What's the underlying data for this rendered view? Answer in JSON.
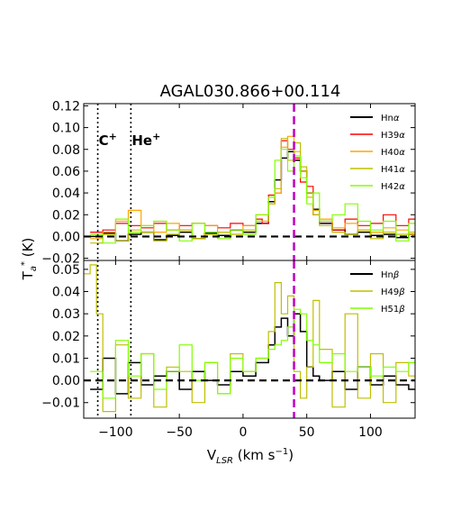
{
  "chart_data": {
    "type": "line",
    "title": "AGAL030.866+00.114",
    "xlabel": "V$_{LSR}$ (km s$^{-1}$)",
    "xlabel_display": {
      "main": "V",
      "sub": "LSR",
      "rest": " (km s",
      "sup": "−1",
      "end": ")"
    },
    "ylabel": "T$_a$$^*$ (K)",
    "ylabel_display": {
      "main": "T",
      "sub": "a",
      "sup": "*",
      "rest": " (K)"
    },
    "xlim": [
      -125,
      135
    ],
    "x_ticks": [
      -100,
      -50,
      0,
      50,
      100
    ],
    "x_tick_labels": [
      "−100",
      "−50",
      "0",
      "50",
      "100"
    ],
    "markers": [
      {
        "x": -114,
        "label": "C",
        "sup": "+",
        "style": "dotted",
        "color": "#000000"
      },
      {
        "x": -88,
        "label": "He",
        "sup": "+",
        "style": "dotted",
        "color": "#000000"
      },
      {
        "x": 40,
        "label": "",
        "style": "dashed",
        "color": "#bf00bf"
      }
    ],
    "panels": [
      {
        "name": "alpha",
        "ylim": [
          -0.022,
          0.122
        ],
        "y_ticks": [
          -0.02,
          0.0,
          0.02,
          0.04,
          0.06,
          0.08,
          0.1,
          0.12
        ],
        "y_tick_labels": [
          "−0.02",
          "0.00",
          "0.02",
          "0.04",
          "0.06",
          "0.08",
          "0.10",
          "0.12"
        ],
        "legend_position": "top-right",
        "series": [
          {
            "name": "Hnα",
            "label_main": "Hn",
            "label_greek": "α",
            "color": "#000000",
            "width": 1.5,
            "x": [
              -120,
              -110,
              -100,
              -90,
              -80,
              -70,
              -60,
              -50,
              -40,
              -30,
              -20,
              -10,
              0,
              10,
              20,
              25,
              30,
              35,
              40,
              45,
              50,
              55,
              60,
              70,
              80,
              90,
              100,
              110,
              120,
              130
            ],
            "y": [
              0.0,
              0.003,
              -0.004,
              0.002,
              0.004,
              -0.003,
              0.001,
              0.004,
              -0.002,
              0.003,
              0.001,
              0.006,
              0.004,
              0.012,
              0.032,
              0.052,
              0.072,
              0.078,
              0.07,
              0.06,
              0.04,
              0.025,
              0.012,
              0.006,
              0.002,
              0.004,
              0.001,
              0.002,
              -0.001,
              0.002
            ]
          },
          {
            "name": "H39α",
            "label_main": "H39",
            "label_greek": "α",
            "color": "#ff0000",
            "width": 1.2,
            "x": [
              -120,
              -110,
              -100,
              -90,
              -80,
              -70,
              -60,
              -50,
              -40,
              -30,
              -20,
              -10,
              0,
              10,
              15,
              20,
              25,
              30,
              35,
              40,
              45,
              50,
              55,
              60,
              70,
              80,
              90,
              100,
              110,
              120,
              130
            ],
            "y": [
              0.004,
              0.006,
              0.012,
              0.01,
              0.008,
              0.012,
              0.006,
              0.01,
              0.012,
              0.01,
              0.008,
              0.012,
              0.01,
              0.016,
              0.012,
              0.038,
              0.04,
              0.088,
              0.08,
              0.072,
              0.05,
              0.046,
              0.02,
              0.014,
              0.006,
              0.016,
              0.01,
              0.012,
              0.02,
              0.01,
              0.016
            ]
          },
          {
            "name": "H40α",
            "label_main": "H40",
            "label_greek": "α",
            "color": "#ffa500",
            "width": 1.2,
            "x": [
              -120,
              -110,
              -100,
              -90,
              -80,
              -70,
              -60,
              -50,
              -40,
              -30,
              -20,
              -10,
              0,
              10,
              20,
              25,
              30,
              35,
              40,
              45,
              50,
              55,
              60,
              70,
              80,
              90,
              100,
              110,
              120,
              130
            ],
            "y": [
              -0.002,
              0.004,
              0.014,
              0.024,
              0.01,
              0.004,
              0.012,
              0.006,
              -0.002,
              0.01,
              0.004,
              0.002,
              0.01,
              0.02,
              0.03,
              0.04,
              0.082,
              0.092,
              0.078,
              0.06,
              0.036,
              0.024,
              0.016,
              0.008,
              0.012,
              0.006,
              0.004,
              0.008,
              0.006,
              0.002
            ]
          },
          {
            "name": "H41α",
            "label_main": "H41",
            "label_greek": "α",
            "color": "#bfbf00",
            "width": 1.2,
            "x": [
              -120,
              -110,
              -100,
              -90,
              -80,
              -70,
              -60,
              -50,
              -40,
              -30,
              -20,
              -10,
              0,
              10,
              20,
              25,
              30,
              35,
              40,
              45,
              50,
              55,
              60,
              70,
              80,
              90,
              100,
              110,
              120,
              130
            ],
            "y": [
              -0.006,
              0.002,
              -0.004,
              0.006,
              0.004,
              -0.004,
              0.002,
              0.006,
              -0.002,
              0.002,
              0.004,
              0.002,
              0.006,
              0.014,
              0.03,
              0.044,
              0.09,
              0.07,
              0.086,
              0.064,
              0.04,
              0.02,
              0.01,
              0.004,
              0.002,
              0.006,
              -0.002,
              0.004,
              0.002,
              0.004
            ]
          },
          {
            "name": "H42α",
            "label_main": "H42",
            "label_greek": "α",
            "color": "#80ff00",
            "width": 1.2,
            "x": [
              -120,
              -110,
              -100,
              -90,
              -80,
              -70,
              -60,
              -50,
              -40,
              -30,
              -20,
              -10,
              0,
              10,
              20,
              25,
              30,
              35,
              40,
              45,
              50,
              55,
              60,
              70,
              80,
              90,
              100,
              110,
              120,
              130
            ],
            "y": [
              0.002,
              -0.006,
              0.016,
              0.004,
              0.01,
              0.014,
              0.006,
              -0.004,
              0.012,
              0.004,
              -0.002,
              0.006,
              0.002,
              0.02,
              0.036,
              0.07,
              0.08,
              0.06,
              0.074,
              0.054,
              0.03,
              0.04,
              0.014,
              0.02,
              0.03,
              0.014,
              0.006,
              0.014,
              -0.004,
              0.012
            ]
          }
        ]
      },
      {
        "name": "beta",
        "ylim": [
          -0.017,
          0.054
        ],
        "y_ticks": [
          -0.01,
          0.0,
          0.01,
          0.02,
          0.03,
          0.04,
          0.05
        ],
        "y_tick_labels": [
          "−0.01",
          "0.00",
          "0.01",
          "0.02",
          "0.03",
          "0.04",
          "0.05"
        ],
        "legend_position": "top-right",
        "series": [
          {
            "name": "Hnβ",
            "label_main": "Hn",
            "label_greek": "β",
            "color": "#000000",
            "width": 1.5,
            "x": [
              -120,
              -110,
              -100,
              -90,
              -80,
              -70,
              -60,
              -50,
              -40,
              -30,
              -20,
              -10,
              0,
              10,
              20,
              25,
              30,
              35,
              40,
              45,
              50,
              55,
              60,
              70,
              80,
              90,
              100,
              110,
              120,
              130
            ],
            "y": [
              -0.004,
              0.01,
              -0.006,
              0.008,
              -0.002,
              0.002,
              0.004,
              -0.004,
              0.004,
              0.0,
              -0.002,
              0.004,
              0.002,
              0.008,
              0.016,
              0.024,
              0.028,
              0.02,
              0.03,
              0.022,
              0.006,
              0.002,
              0.0,
              0.004,
              -0.004,
              0.006,
              -0.002,
              0.002,
              -0.002,
              -0.004
            ]
          },
          {
            "name": "H49β",
            "label_main": "H49",
            "label_greek": "β",
            "color": "#bfbf00",
            "width": 1.2,
            "x": [
              -125,
              -120,
              -115,
              -110,
              -100,
              -90,
              -80,
              -70,
              -60,
              -50,
              -40,
              -30,
              -20,
              -10,
              0,
              10,
              20,
              25,
              30,
              35,
              40,
              45,
              50,
              55,
              60,
              70,
              80,
              90,
              100,
              110,
              120,
              130
            ],
            "y": [
              0.048,
              0.052,
              0.03,
              -0.014,
              0.016,
              -0.008,
              0.012,
              -0.012,
              0.006,
              0.004,
              -0.01,
              0.008,
              -0.006,
              0.012,
              0.004,
              0.01,
              0.022,
              0.044,
              0.03,
              0.038,
              0.004,
              -0.008,
              0.006,
              0.036,
              0.014,
              -0.012,
              0.03,
              -0.008,
              0.012,
              -0.01,
              0.008,
              0.002
            ]
          },
          {
            "name": "H51β",
            "label_main": "H51",
            "label_greek": "β",
            "color": "#80ff00",
            "width": 1.2,
            "x": [
              -120,
              -110,
              -100,
              -90,
              -80,
              -70,
              -60,
              -50,
              -40,
              -30,
              -20,
              -10,
              0,
              10,
              20,
              25,
              30,
              35,
              40,
              45,
              50,
              55,
              60,
              70,
              80,
              90,
              100,
              110,
              120,
              130
            ],
            "y": [
              0.004,
              -0.008,
              0.018,
              0.002,
              0.012,
              -0.004,
              0.004,
              0.016,
              0.0,
              0.008,
              -0.006,
              0.01,
              0.004,
              0.01,
              0.014,
              0.016,
              0.018,
              0.024,
              0.032,
              0.03,
              0.018,
              0.016,
              0.008,
              0.012,
              0.004,
              0.006,
              0.002,
              0.006,
              0.004,
              0.008
            ]
          }
        ]
      }
    ]
  }
}
